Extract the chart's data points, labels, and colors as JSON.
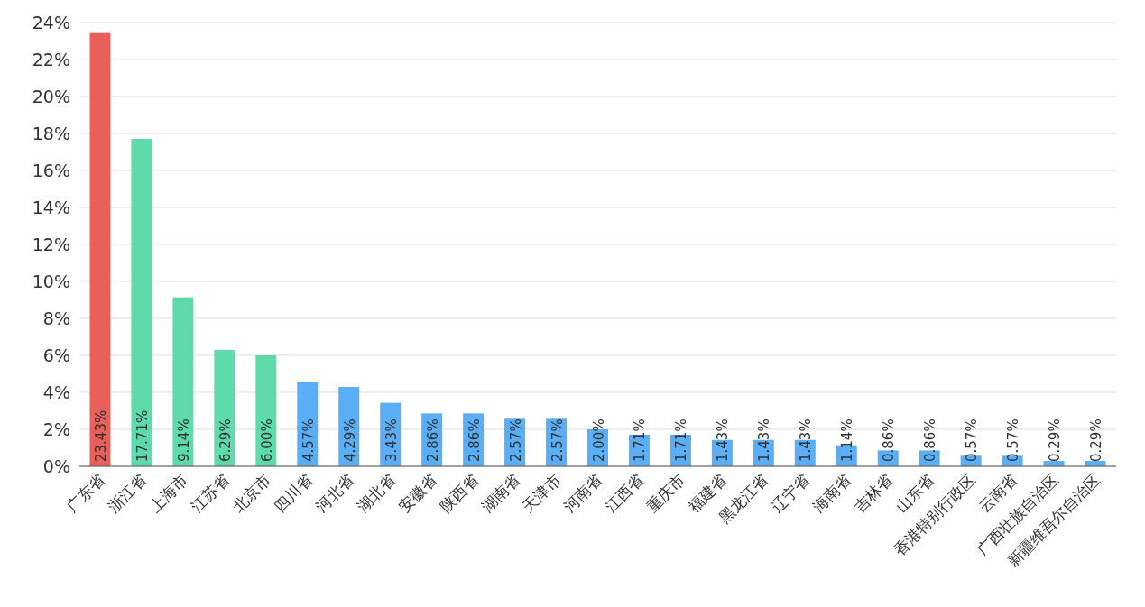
{
  "chart_data": {
    "type": "bar",
    "categories": [
      "广东省",
      "浙江省",
      "上海市",
      "江苏省",
      "北京市",
      "四川省",
      "河北省",
      "湖北省",
      "安徽省",
      "陕西省",
      "湖南省",
      "天津市",
      "河南省",
      "江西省",
      "重庆市",
      "福建省",
      "黑龙江省",
      "辽宁省",
      "海南省",
      "吉林省",
      "山东省",
      "香港特别行政区",
      "云南省",
      "广西壮族自治区",
      "新疆维吾尔自治区"
    ],
    "values": [
      23.43,
      17.71,
      9.14,
      6.29,
      6.0,
      4.57,
      4.29,
      3.43,
      2.86,
      2.86,
      2.57,
      2.57,
      2.0,
      1.71,
      1.71,
      1.43,
      1.43,
      1.43,
      1.14,
      0.86,
      0.86,
      0.57,
      0.57,
      0.29,
      0.29
    ],
    "value_labels": [
      "23.43%",
      "17.71%",
      "9.14%",
      "6.29%",
      "6.00%",
      "4.57%",
      "4.29%",
      "3.43%",
      "2.86%",
      "2.86%",
      "2.57%",
      "2.57%",
      "2.00%",
      "1.71%",
      "1.71%",
      "1.43%",
      "1.43%",
      "1.43%",
      "1.14%",
      "0.86%",
      "0.86%",
      "0.57%",
      "0.57%",
      "0.29%",
      "0.29%"
    ],
    "colors": [
      "#e8605a",
      "#5fdaab",
      "#5fdaab",
      "#5fdaab",
      "#5fdaab",
      "#5aaef5",
      "#5aaef5",
      "#5aaef5",
      "#5aaef5",
      "#5aaef5",
      "#5aaef5",
      "#5aaef5",
      "#5aaef5",
      "#5aaef5",
      "#5aaef5",
      "#5aaef5",
      "#5aaef5",
      "#5aaef5",
      "#5aaef5",
      "#5aaef5",
      "#5aaef5",
      "#5aaef5",
      "#5aaef5",
      "#5aaef5",
      "#5aaef5"
    ],
    "ylim": [
      0,
      24
    ],
    "yticks": [
      {
        "value": 0,
        "label": "0%"
      },
      {
        "value": 2,
        "label": "2%"
      },
      {
        "value": 4,
        "label": "4%"
      },
      {
        "value": 6,
        "label": "6%"
      },
      {
        "value": 8,
        "label": "8%"
      },
      {
        "value": 10,
        "label": "10%"
      },
      {
        "value": 12,
        "label": "12%"
      },
      {
        "value": 14,
        "label": "14%"
      },
      {
        "value": 16,
        "label": "16%"
      },
      {
        "value": 18,
        "label": "18%"
      },
      {
        "value": 20,
        "label": "20%"
      },
      {
        "value": 22,
        "label": "22%"
      },
      {
        "value": 24,
        "label": "24%"
      }
    ],
    "grid": "y"
  }
}
